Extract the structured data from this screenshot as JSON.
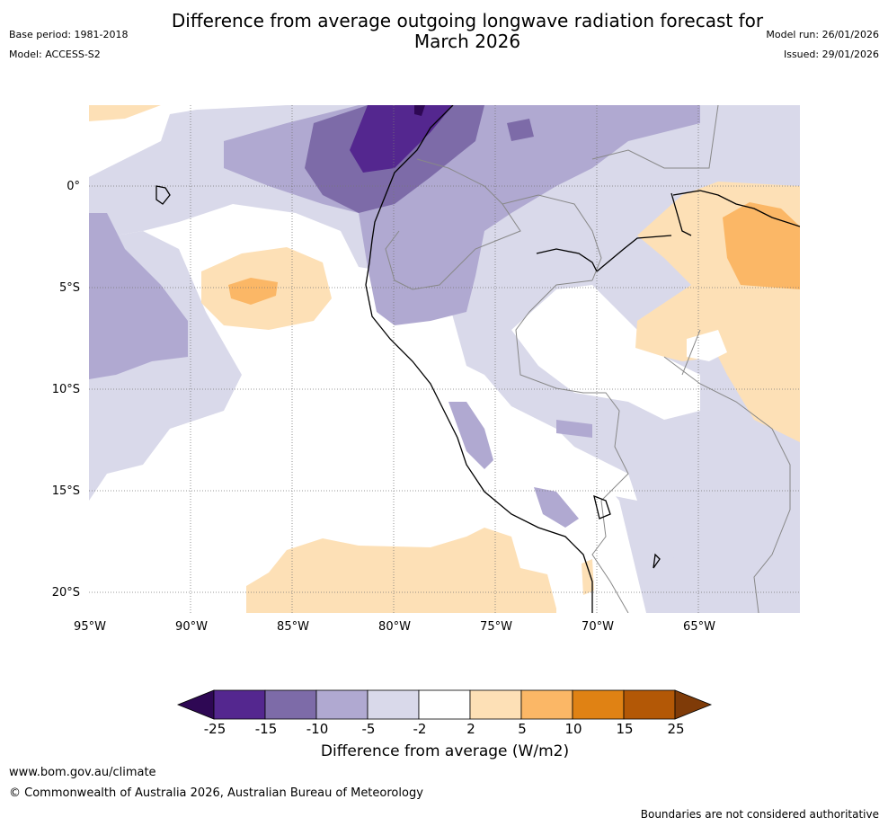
{
  "header": {
    "title_line1": "Difference from average outgoing longwave radiation forecast for",
    "title_line2": "March 2026",
    "base_period": "Base period: 1981-2018",
    "model": "Model: ACCESS-S2",
    "model_run": "Model run: 26/01/2026",
    "issued": "Issued: 29/01/2026"
  },
  "map": {
    "lat_labels": [
      "0°",
      "5°S",
      "10°S",
      "15°S",
      "20°S"
    ],
    "lon_labels": [
      "95°W",
      "90°W",
      "85°W",
      "80°W",
      "75°W",
      "70°W",
      "65°W"
    ]
  },
  "legend": {
    "title": "Difference from average (W/m2)",
    "ticks": [
      "-25",
      "-15",
      "-10",
      "-5",
      "-2",
      "2",
      "5",
      "10",
      "15",
      "25"
    ],
    "colors": [
      "#2e0854",
      "#54278f",
      "#7d6ba8",
      "#b0a9d1",
      "#d9d9ea",
      "#ffffff",
      "#fde0b6",
      "#fbb766",
      "#e08214",
      "#b35806",
      "#7f3b08"
    ]
  },
  "footer": {
    "url": "www.bom.gov.au/climate",
    "copyright": "© Commonwealth of Australia 2026, Australian Bureau of Meteorology",
    "disclaimer": "Boundaries are not considered authoritative"
  }
}
